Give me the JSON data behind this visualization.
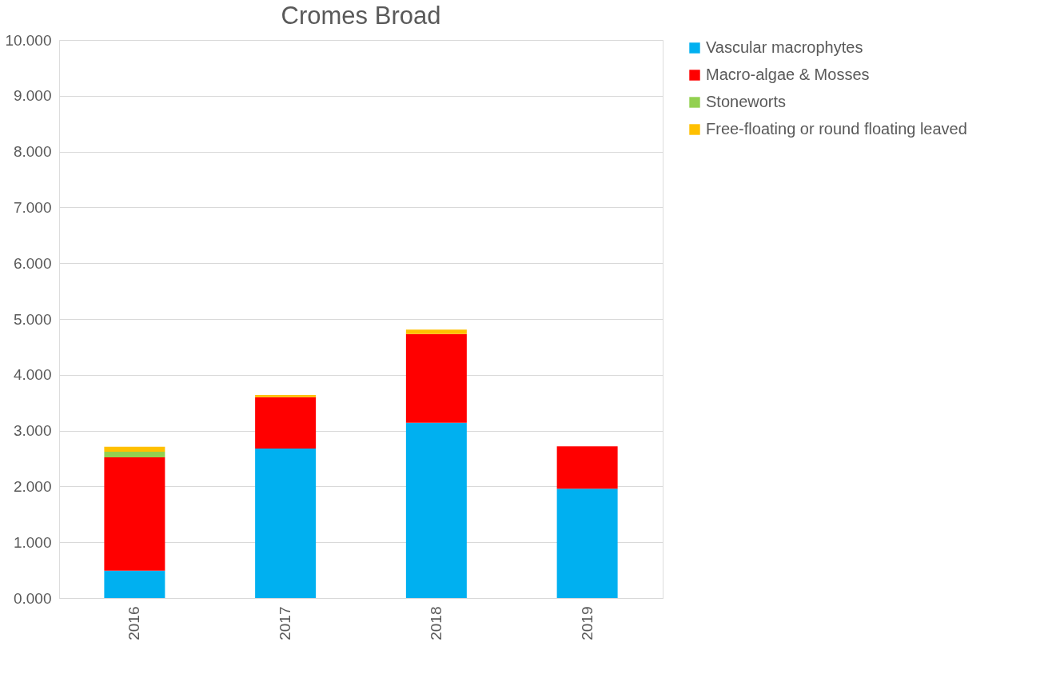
{
  "chart_data": {
    "type": "bar",
    "title": "Cromes Broad",
    "stacked": true,
    "categories": [
      "2016",
      "2017",
      "2018",
      "2019"
    ],
    "series": [
      {
        "name": "Vascular macrophytes",
        "color": "#00b0f0",
        "values": [
          0.49,
          2.68,
          3.14,
          1.96
        ]
      },
      {
        "name": "Macro-algae & Mosses",
        "color": "#ff0000",
        "values": [
          2.03,
          0.92,
          1.59,
          0.76
        ]
      },
      {
        "name": "Stoneworts",
        "color": "#92d050",
        "values": [
          0.1,
          0,
          0,
          0
        ]
      },
      {
        "name": "Free-floating or round floating leaved",
        "color": "#ffc000",
        "values": [
          0.09,
          0.04,
          0.08,
          0
        ]
      }
    ],
    "ylim": [
      0,
      10
    ],
    "yticks": [
      {
        "value": 0,
        "label": "0.000"
      },
      {
        "value": 1,
        "label": "1.000"
      },
      {
        "value": 2,
        "label": "2.000"
      },
      {
        "value": 3,
        "label": "3.000"
      },
      {
        "value": 4,
        "label": "4.000"
      },
      {
        "value": 5,
        "label": "5.000"
      },
      {
        "value": 6,
        "label": "6.000"
      },
      {
        "value": 7,
        "label": "7.000"
      },
      {
        "value": 8,
        "label": "8.000"
      },
      {
        "value": 9,
        "label": "9.000"
      },
      {
        "value": 10,
        "label": "10.000"
      }
    ],
    "grid": "y",
    "legend": "right"
  }
}
